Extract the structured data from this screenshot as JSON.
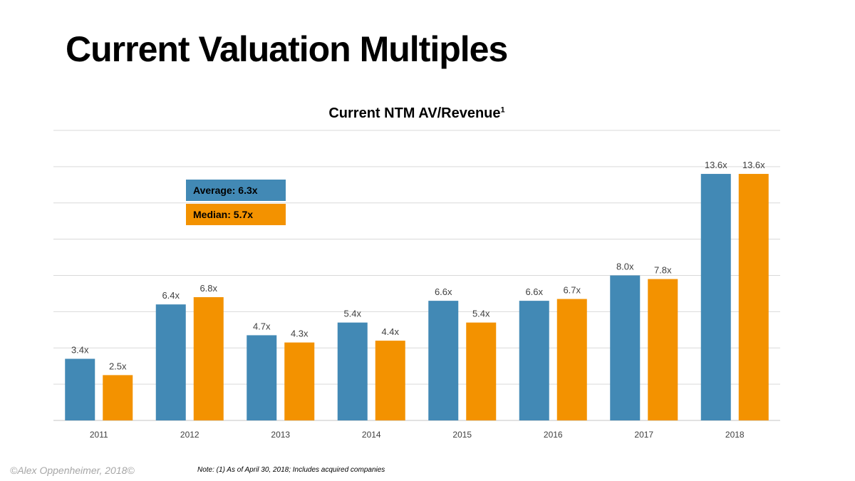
{
  "slide": {
    "title": "Current Valuation Multiples",
    "credit": "©Alex Oppenheimer, 2018©",
    "note": "Note: (1) As of April 30, 2018; Includes acquired companies"
  },
  "legend": {
    "average_label": "Average: 6.3x",
    "median_label": "Median: 5.7x"
  },
  "colors": {
    "average": "#4289b5",
    "median": "#f39200",
    "grid": "#d9d9d9",
    "tick_text": "#404040"
  },
  "chart_data": {
    "type": "bar",
    "title": "Current NTM AV/Revenue",
    "title_superscript": "1",
    "categories": [
      "2011",
      "2012",
      "2013",
      "2014",
      "2015",
      "2016",
      "2017",
      "2018"
    ],
    "series": [
      {
        "name": "Average",
        "values": [
          3.4,
          6.4,
          4.7,
          5.4,
          6.6,
          6.6,
          8.0,
          13.6
        ],
        "labels": [
          "3.4x",
          "6.4x",
          "4.7x",
          "5.4x",
          "6.6x",
          "6.6x",
          "8.0x",
          "13.6x"
        ]
      },
      {
        "name": "Median",
        "values": [
          2.5,
          6.8,
          4.3,
          4.4,
          5.4,
          6.7,
          7.8,
          13.6
        ],
        "labels": [
          "2.5x",
          "6.8x",
          "4.3x",
          "4.4x",
          "5.4x",
          "6.7x",
          "7.8x",
          "13.6x"
        ]
      }
    ],
    "xlabel": "",
    "ylabel": "",
    "ylim": [
      0,
      16
    ],
    "grid": true,
    "legend_placement": "top-left"
  }
}
